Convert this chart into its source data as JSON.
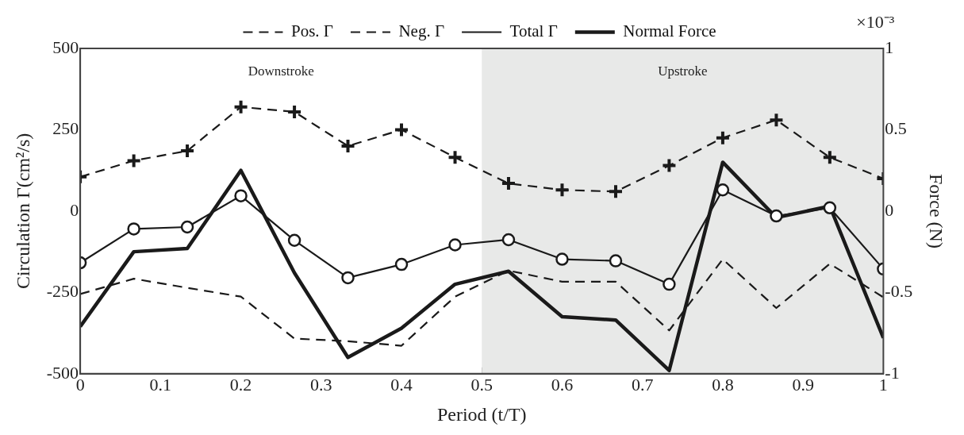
{
  "chart_data": {
    "type": "line",
    "x": [
      0,
      0.0667,
      0.1333,
      0.2,
      0.2667,
      0.3333,
      0.4,
      0.4667,
      0.5333,
      0.6,
      0.6667,
      0.7333,
      0.8,
      0.8667,
      0.9333,
      1
    ],
    "xlabel": "Period (t/T)",
    "ylabel": "Circulation Γ(cm²/s)",
    "y2label": "Force (N)",
    "xlim": [
      0,
      1
    ],
    "xticks": [
      0,
      0.1,
      0.2,
      0.3,
      0.4,
      0.5,
      0.6,
      0.7,
      0.8,
      0.9,
      1
    ],
    "ylim": [
      -500,
      500
    ],
    "yticks": [
      -500,
      -250,
      0,
      250,
      500
    ],
    "y2lim": [
      -1,
      1
    ],
    "y2ticks": [
      -1,
      -0.5,
      0,
      0.5,
      1
    ],
    "grid": false,
    "legend": "top",
    "bands": [
      {
        "axis": "x",
        "from": 0,
        "to": 0.5,
        "color": "#ffffff",
        "label": "Downstroke"
      },
      {
        "axis": "x",
        "from": 0.5,
        "to": 1,
        "color": "#e8e9e8",
        "label": "Upstroke"
      }
    ],
    "annotations": [
      "×10⁻³"
    ],
    "series": [
      {
        "name": "Pos. Γ",
        "color": "#1a1a1a",
        "marker": "cross",
        "line_style": "dashed",
        "values": [
          105,
          155,
          185,
          320,
          305,
          200,
          250,
          165,
          85,
          65,
          60,
          140,
          225,
          280,
          165,
          100
        ]
      },
      {
        "name": "Neg. Γ",
        "color": "#1a1a1a",
        "marker": "none",
        "line_style": "dashed",
        "values": [
          -255,
          -208,
          -236,
          -263,
          -392,
          -400,
          -414,
          -263,
          -183,
          -217,
          -217,
          -367,
          -148,
          -298,
          -162,
          -265
        ]
      },
      {
        "name": "Total Γ",
        "color": "#1a1a1a",
        "marker": "circle",
        "line_style": "solid",
        "values": [
          -159,
          -55,
          -49,
          47,
          -90,
          -205,
          -164,
          -104,
          -88,
          -148,
          -153,
          -225,
          65,
          -15,
          10,
          -178
        ]
      },
      {
        "name": "Normal Force",
        "color": "#1a1a1a",
        "marker": "none",
        "line_style": "solid",
        "axis": "y2",
        "values": [
          -0.71,
          -0.25,
          -0.23,
          0.25,
          -0.38,
          -0.9,
          -0.72,
          -0.45,
          -0.37,
          -0.65,
          -0.67,
          -0.98,
          0.3,
          -0.04,
          0.03,
          -0.78
        ]
      }
    ]
  }
}
